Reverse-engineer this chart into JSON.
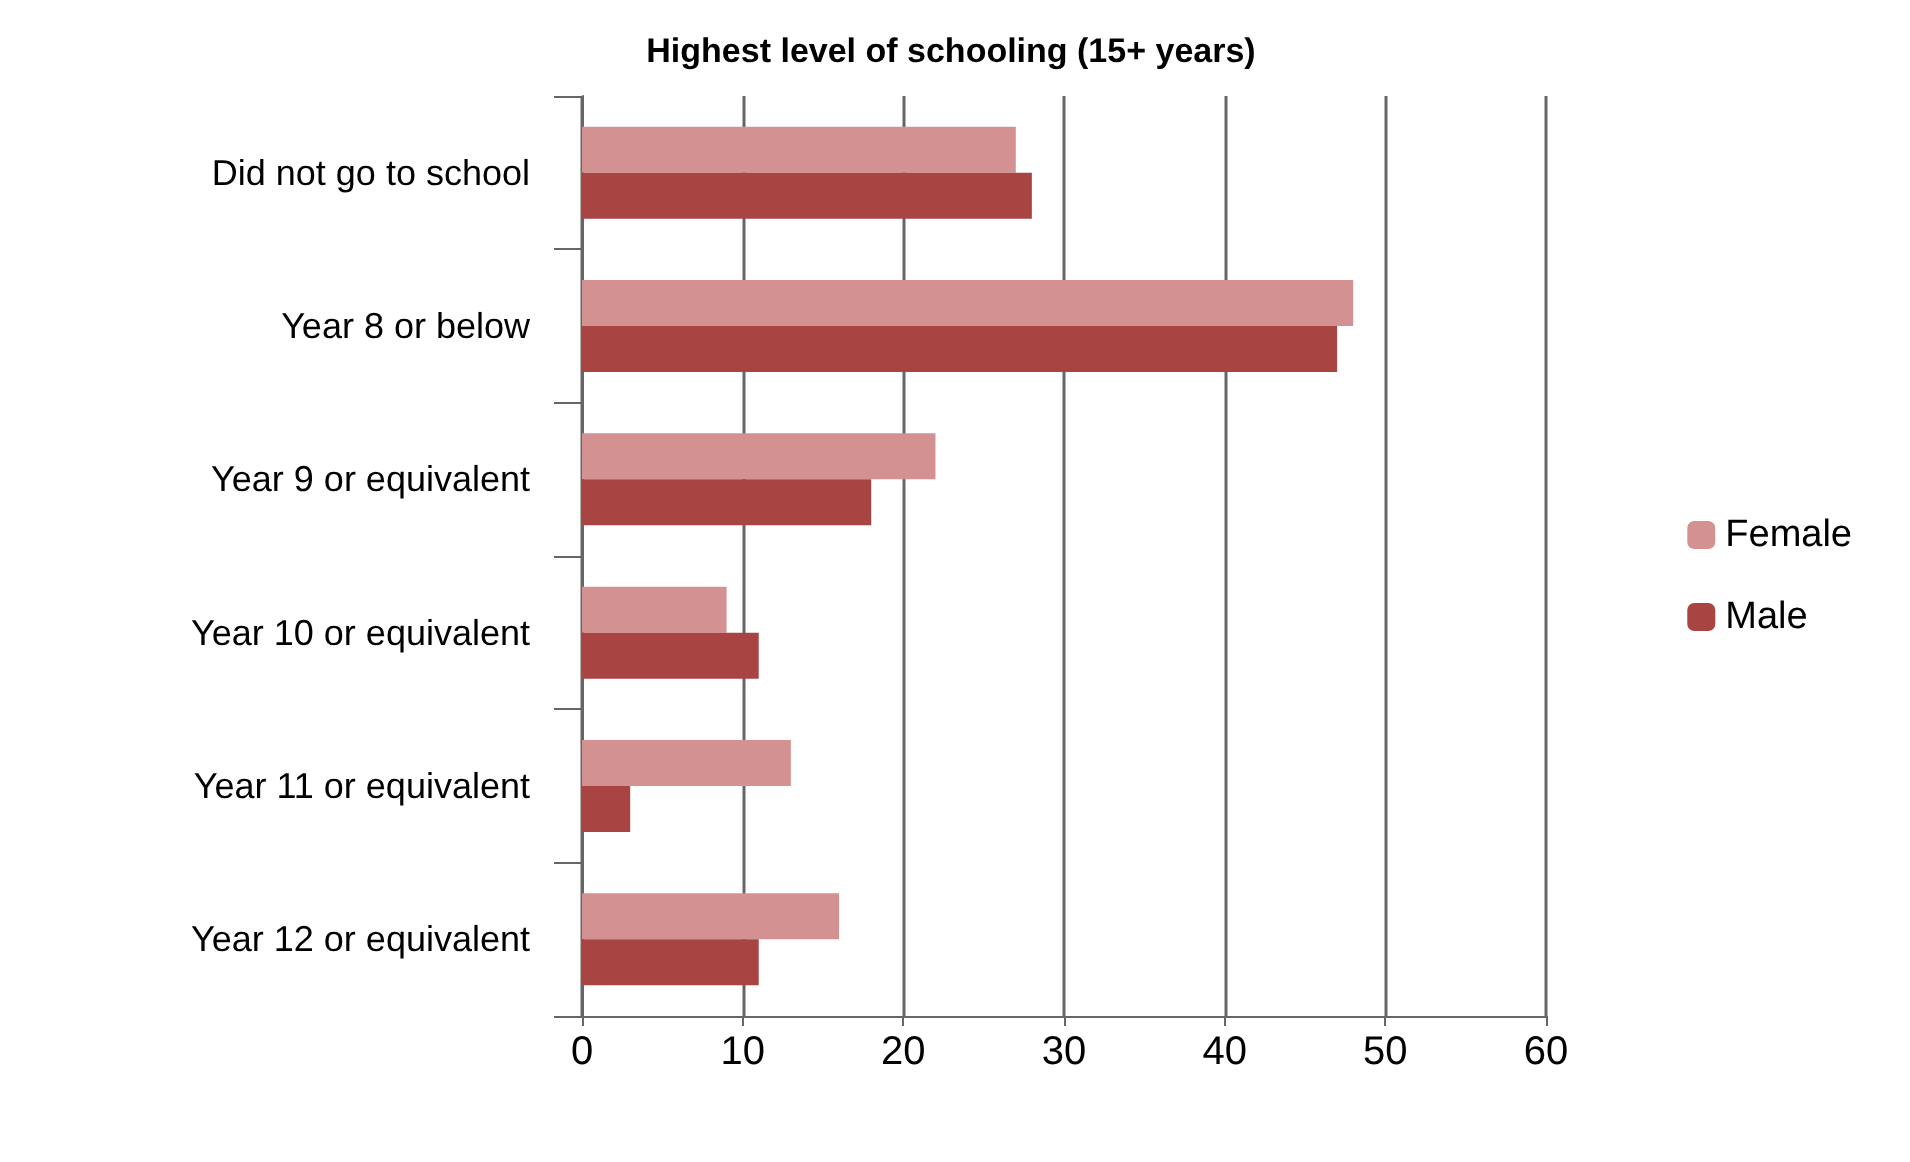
{
  "chart_data": {
    "type": "bar",
    "orientation": "horizontal",
    "title": "Highest level of schooling (15+ years)",
    "categories": [
      "Did not go to school",
      "Year 8 or below",
      "Year 9 or equivalent",
      "Year 10 or equivalent",
      "Year 11 or equivalent",
      "Year 12 or equivalent"
    ],
    "series": [
      {
        "name": "Female",
        "color": "#d39291",
        "values": [
          27,
          48,
          22,
          9,
          13,
          16
        ]
      },
      {
        "name": "Male",
        "color": "#a84543",
        "values": [
          28,
          47,
          18,
          11,
          3,
          11
        ]
      }
    ],
    "xlim": [
      0,
      60
    ],
    "xticks": [
      0,
      10,
      20,
      30,
      40,
      50,
      60
    ],
    "grid": "x",
    "legend": "right"
  }
}
